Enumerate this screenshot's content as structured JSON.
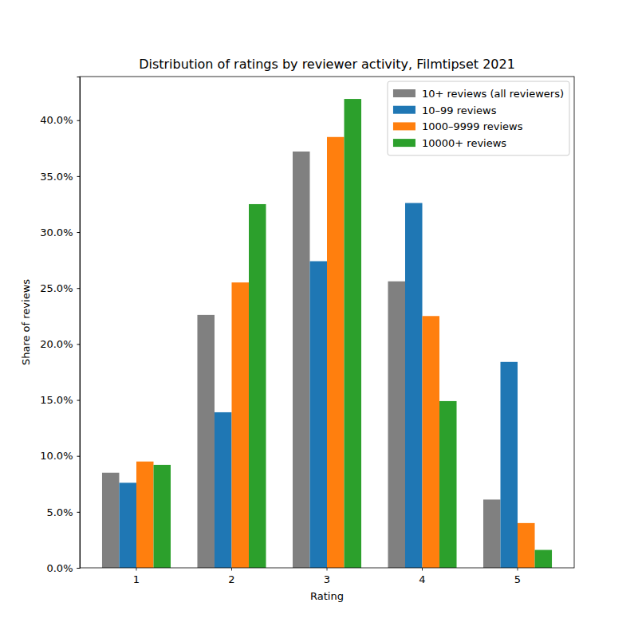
{
  "chart_data": {
    "type": "bar",
    "title": "Distribution of ratings by reviewer activity, Filmtipset 2021",
    "x_label": "Rating",
    "y_label": "Share of reviews",
    "categories": [
      "1",
      "2",
      "3",
      "4",
      "5"
    ],
    "series": [
      {
        "name": "10+ reviews (all reviewers)",
        "color": "#808080",
        "values": [
          8.5,
          22.6,
          37.2,
          25.6,
          6.1
        ]
      },
      {
        "name": "10–99 reviews",
        "color": "#1f77b4",
        "values": [
          7.6,
          13.9,
          27.4,
          32.6,
          18.4
        ]
      },
      {
        "name": "1000–9999 reviews",
        "color": "#ff7f0e",
        "values": [
          9.5,
          25.5,
          38.5,
          22.5,
          4.0
        ]
      },
      {
        "name": "10000+ reviews",
        "color": "#2ca02c",
        "values": [
          9.2,
          32.5,
          41.9,
          14.9,
          1.6
        ]
      }
    ],
    "ylim": [
      0,
      43.9
    ],
    "yticks": [
      {
        "value": 0,
        "label": "0.0%"
      },
      {
        "value": 5,
        "label": "5.0%"
      },
      {
        "value": 10,
        "label": "10.0%"
      },
      {
        "value": 15,
        "label": "15.0%"
      },
      {
        "value": 20,
        "label": "20.0%"
      },
      {
        "value": 25,
        "label": "25.0%"
      },
      {
        "value": 30,
        "label": "30.0%"
      },
      {
        "value": 35,
        "label": "35.0%"
      },
      {
        "value": 40,
        "label": "40.0%"
      }
    ],
    "grid": false,
    "legend": "upper right"
  }
}
